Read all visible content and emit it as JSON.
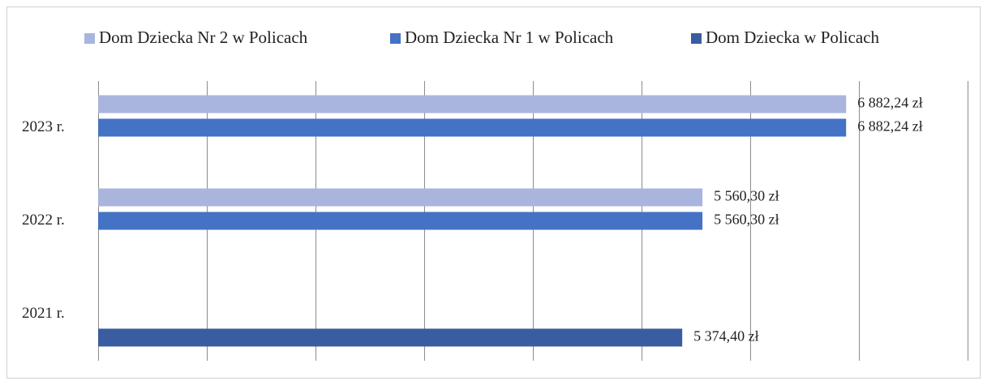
{
  "chart_data": {
    "type": "barh",
    "categories": [
      "2021 r.",
      "2022 r.",
      "2023 r."
    ],
    "series": [
      {
        "name": "Dom Dziecka Nr 2 w Policach",
        "color": "#a9b5dc",
        "values": [
          null,
          5560.3,
          6882.24
        ],
        "value_labels": [
          null,
          "5 560,30 zł",
          "6 882,24 zł"
        ]
      },
      {
        "name": "Dom Dziecka Nr 1 w Policach",
        "color": "#4472c4",
        "values": [
          null,
          5560.3,
          6882.24
        ],
        "value_labels": [
          null,
          "5 560,30 zł",
          "6 882,24 zł"
        ]
      },
      {
        "name": "Dom Dziecka w Policach",
        "color": "#3a5da1",
        "values": [
          5374.4,
          null,
          null
        ],
        "value_labels": [
          "5 374,40 zł",
          null,
          null
        ]
      }
    ],
    "xlim": [
      0,
      8000
    ],
    "xticks": [
      0,
      1000,
      2000,
      3000,
      4000,
      5000,
      6000,
      7000,
      8000
    ],
    "grid": true,
    "legend": "top"
  }
}
